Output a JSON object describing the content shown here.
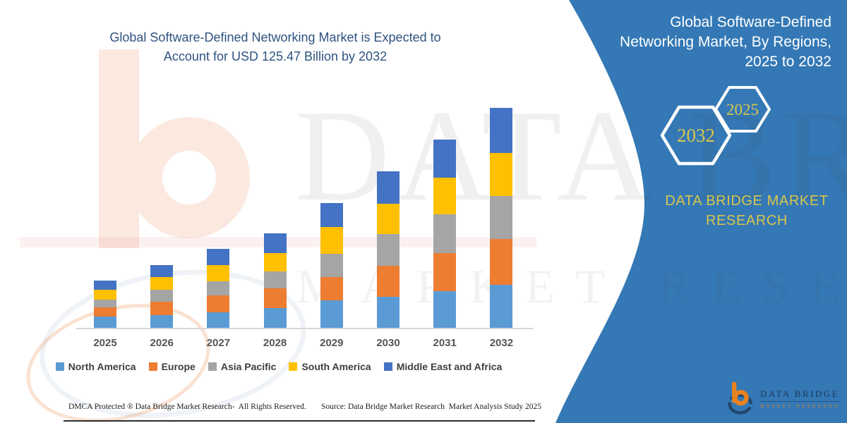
{
  "left": {
    "chart_title_lines": [
      "Global Software-Defined Networking Market is Expected to",
      "Account for USD 125.47 Billion by 2032"
    ],
    "footer": {
      "dmca": "DMCA Protected ® Data Bridge Market Research-  All Rights Reserved.",
      "source": "Source: Data Bridge Market Research  Market Analysis Study 2025"
    }
  },
  "watermark": {
    "line1": "DATA BRIDGE",
    "line2": "MARKET RESEARCH"
  },
  "chart_data": {
    "type": "bar",
    "stacked": true,
    "title": "Global Software-Defined Networking Market is Expected to Account for USD 125.47 Billion by 2032",
    "unit": "USD Billion",
    "categories": [
      "2025",
      "2026",
      "2027",
      "2028",
      "2029",
      "2030",
      "2031",
      "2032"
    ],
    "series": [
      {
        "name": "North America",
        "color": "#5b9bd5",
        "values": [
          6.7,
          7.7,
          9.2,
          11.5,
          16.1,
          18.0,
          21.2,
          24.8
        ]
      },
      {
        "name": "Europe",
        "color": "#ed7d31",
        "values": [
          5.4,
          7.4,
          9.6,
          11.3,
          13.3,
          17.6,
          21.7,
          26.0
        ]
      },
      {
        "name": "Asia Pacific",
        "color": "#a5a5a5",
        "values": [
          4.5,
          7.1,
          8.0,
          9.6,
          13.0,
          18.2,
          22.0,
          24.7
        ]
      },
      {
        "name": "South America",
        "color": "#ffc000",
        "values": [
          5.6,
          7.1,
          9.1,
          10.4,
          15.4,
          17.1,
          20.8,
          24.5
        ]
      },
      {
        "name": "Middle East and Africa",
        "color": "#4472c4",
        "values": [
          5.1,
          6.9,
          9.6,
          11.3,
          13.6,
          18.4,
          21.7,
          25.5
        ]
      }
    ],
    "totals": [
      27.3,
      36.2,
      45.5,
      54.1,
      71.4,
      89.3,
      107.4,
      125.47
    ],
    "ylim": [
      0,
      130
    ],
    "gridlines": false,
    "y_axis_visible": false,
    "legend_position": "bottom"
  },
  "panel": {
    "title_lines": [
      "Global Software-Defined",
      "Networking Market, By Regions,",
      "2025 to 2032"
    ],
    "hexagon_years": [
      "2032",
      "2025"
    ],
    "brand_lines": [
      "DATA BRIDGE MARKET",
      "RESEARCH"
    ],
    "logo": {
      "name_line": "DATA BRIDGE",
      "sub_line": "MARKET RESEARCH"
    },
    "colors": {
      "panel_bg": "#3478b5",
      "gold": "#d9c64c",
      "hex_stroke": "#ffffff"
    }
  }
}
